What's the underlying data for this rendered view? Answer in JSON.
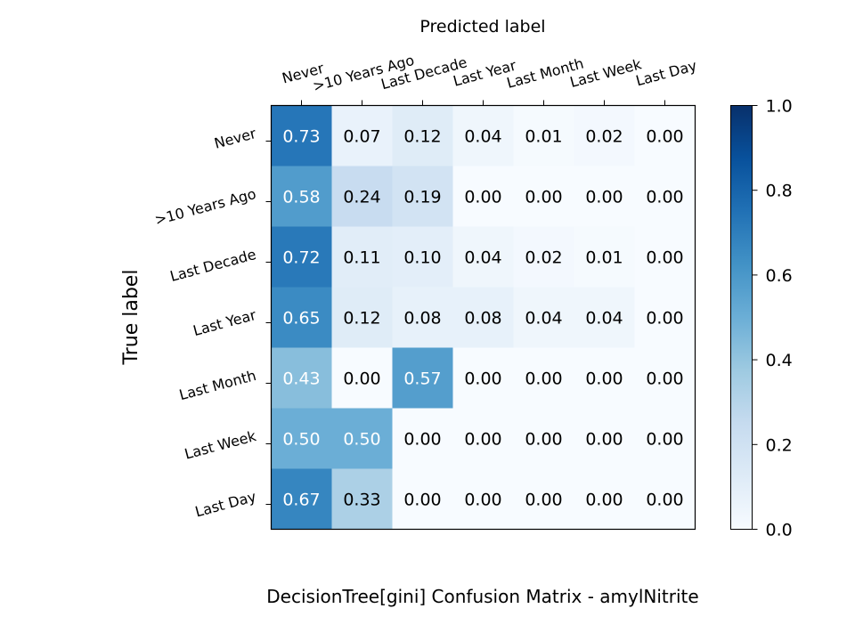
{
  "chart_data": {
    "type": "heatmap",
    "title": "DecisionTree[gini]  Confusion Matrix - amylNitrite",
    "xlabel": "Predicted label",
    "ylabel": "True label",
    "x_categories": [
      "Never",
      ">10 Years Ago",
      "Last Decade",
      "Last Year",
      "Last Month",
      "Last Week",
      "Last Day"
    ],
    "y_categories": [
      "Never",
      ">10 Years Ago",
      "Last Decade",
      "Last Year",
      "Last Month",
      "Last Week",
      "Last Day"
    ],
    "values": [
      [
        0.73,
        0.07,
        0.12,
        0.04,
        0.01,
        0.02,
        0.0
      ],
      [
        0.58,
        0.24,
        0.19,
        0.0,
        0.0,
        0.0,
        0.0
      ],
      [
        0.72,
        0.11,
        0.1,
        0.04,
        0.02,
        0.01,
        0.0
      ],
      [
        0.65,
        0.12,
        0.08,
        0.08,
        0.04,
        0.04,
        0.0
      ],
      [
        0.43,
        0.0,
        0.57,
        0.0,
        0.0,
        0.0,
        0.0
      ],
      [
        0.5,
        0.5,
        0.0,
        0.0,
        0.0,
        0.0,
        0.0
      ],
      [
        0.67,
        0.33,
        0.0,
        0.0,
        0.0,
        0.0,
        0.0
      ]
    ],
    "colorbar": {
      "range": [
        0.0,
        1.0
      ],
      "ticks": [
        "0.0",
        "0.2",
        "0.4",
        "0.6",
        "0.8",
        "1.0"
      ],
      "colormap": "Blues"
    },
    "grid": false
  }
}
